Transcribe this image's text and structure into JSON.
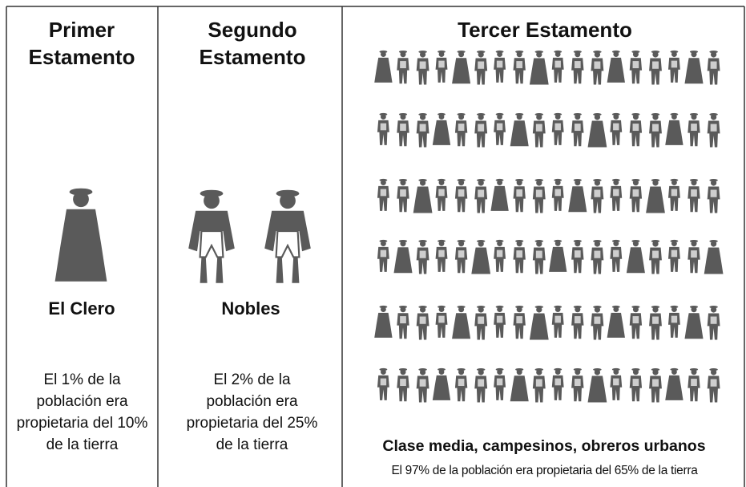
{
  "columns": [
    {
      "title": "Primer Estamento",
      "label": "El Clero",
      "description": "El 1% de la población era propietaria del 10% de la tierra"
    },
    {
      "title": "Segundo Estamento",
      "label": "Nobles",
      "description": "El 2% de la población era propietaria del 25% de la tierra"
    },
    {
      "title": "Tercer Estamento",
      "label": "Clase media, campesinos, obreros urbanos",
      "description": "El 97% de la población era propietaria del 65% de la tierra"
    }
  ]
}
